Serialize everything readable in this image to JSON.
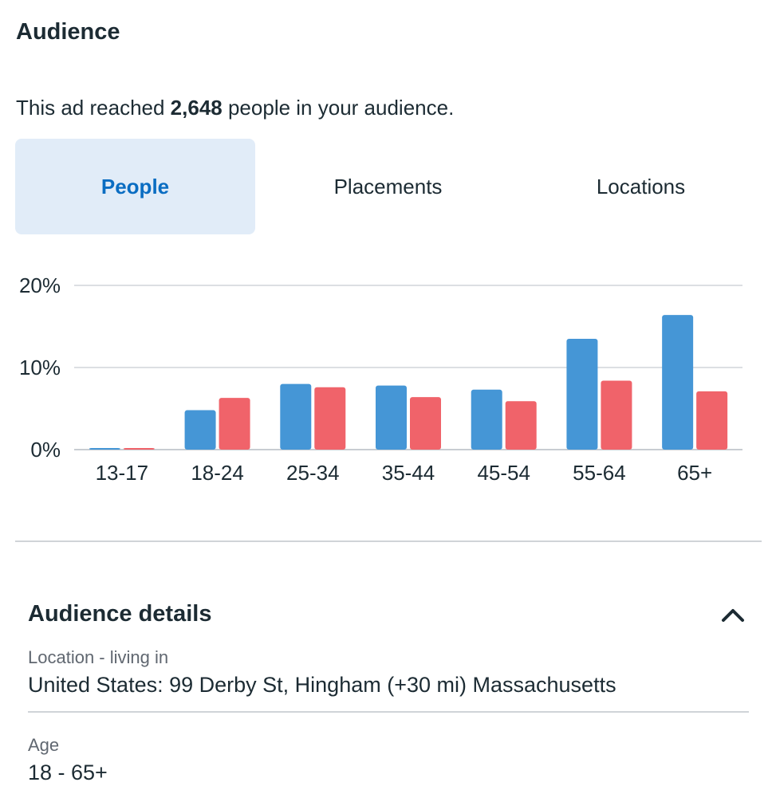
{
  "header": {
    "title": "Audience",
    "reach_prefix": "This ad reached ",
    "reach_count": "2,648",
    "reach_suffix": " people in your audience."
  },
  "tabs": [
    {
      "label": "People",
      "active": true
    },
    {
      "label": "Placements",
      "active": false
    },
    {
      "label": "Locations",
      "active": false
    }
  ],
  "chart_data": {
    "type": "bar",
    "categories": [
      "13-17",
      "18-24",
      "25-34",
      "35-44",
      "45-54",
      "55-64",
      "65+"
    ],
    "series": [
      {
        "values": [
          0.2,
          4.8,
          8.0,
          7.8,
          7.3,
          13.5,
          16.4
        ],
        "color": "#4596d6"
      },
      {
        "values": [
          0.2,
          6.3,
          7.6,
          6.4,
          5.9,
          8.4,
          7.1
        ],
        "color": "#f0636a"
      }
    ],
    "yticks": [
      "0%",
      "10%",
      "20%"
    ],
    "ylim": [
      0,
      20
    ],
    "grid": true
  },
  "details": {
    "title": "Audience details",
    "items": [
      {
        "label": "Location - living in",
        "value": "United States: 99 Derby St, Hingham (+30 mi) Massachusetts"
      },
      {
        "label": "Age",
        "value": "18 - 65+"
      }
    ]
  }
}
